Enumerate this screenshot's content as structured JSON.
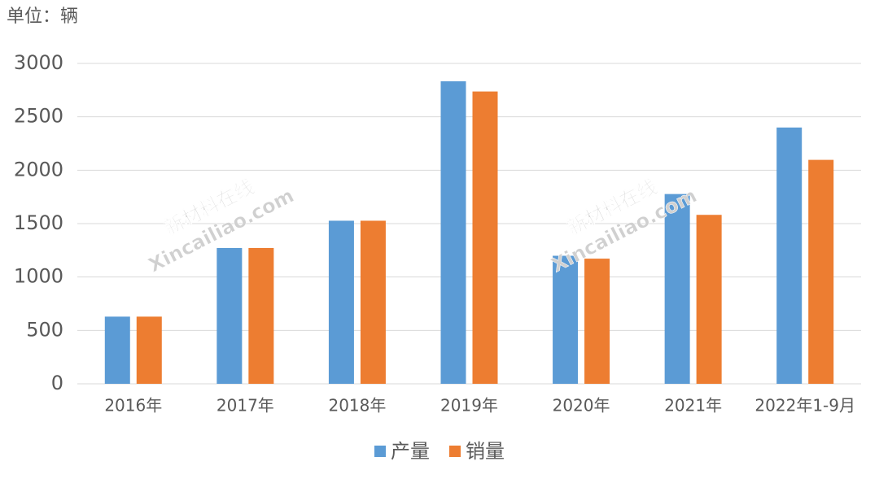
{
  "chart_data": {
    "type": "bar",
    "unit_label": "单位：辆",
    "categories": [
      "2016年",
      "2017年",
      "2018年",
      "2019年",
      "2020年",
      "2021年",
      "2022年1-9月"
    ],
    "series": [
      {
        "name": "产量",
        "color": "#5b9bd5",
        "values": [
          629,
          1272,
          1527,
          2833,
          1199,
          1777,
          2400
        ]
      },
      {
        "name": "销量",
        "color": "#ed7d31",
        "values": [
          629,
          1272,
          1527,
          2737,
          1172,
          1582,
          2097
        ]
      }
    ],
    "ylim": [
      0,
      3000
    ],
    "yticks": [
      0,
      500,
      1000,
      1500,
      2000,
      2500,
      3000
    ],
    "grid": true,
    "legend": "bottom",
    "annotations": [
      "新材料在线",
      "Xincailiao.com",
      "新材料在线",
      "Xincailiao.com"
    ]
  }
}
